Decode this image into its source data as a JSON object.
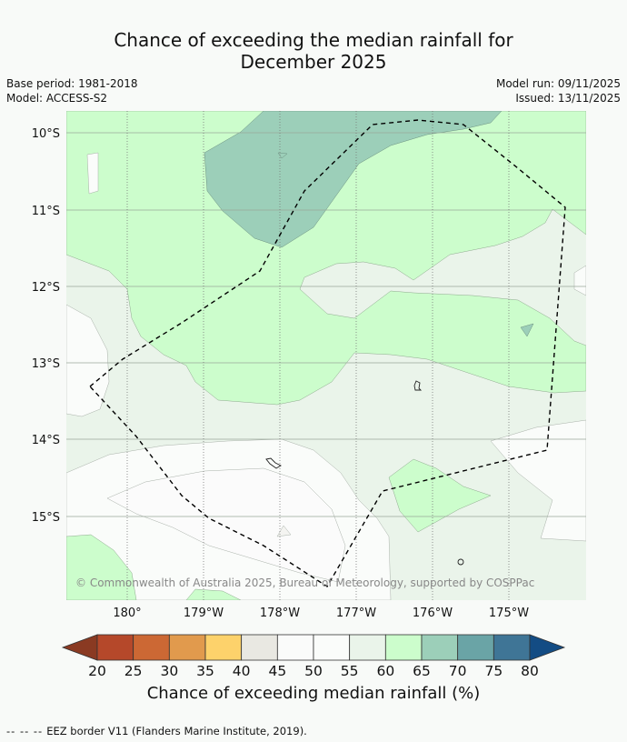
{
  "header": {
    "title_line1": "Chance of exceeding the median rainfall for",
    "title_line2": "December 2025",
    "base_period": "Base period: 1981-2018",
    "model": "Model: ACCESS-S2",
    "model_run": "Model run: 09/11/2025",
    "issued": "Issued: 13/11/2025"
  },
  "map": {
    "lat_labels": [
      "10°S",
      "11°S",
      "12°S",
      "13°S",
      "14°S",
      "15°S"
    ],
    "lon_labels": [
      "180°",
      "179°W",
      "178°W",
      "177°W",
      "176°W",
      "175°W"
    ],
    "copyright": "© Commonwealth of Australia 2025, Bureau of Meteorology, supported by COSPPac"
  },
  "colorbar": {
    "ticks": [
      "20",
      "25",
      "30",
      "35",
      "40",
      "45",
      "50",
      "55",
      "60",
      "65",
      "70",
      "75",
      "80"
    ],
    "colors": [
      "#8a3a22",
      "#b5482a",
      "#cc6834",
      "#e19a4d",
      "#fdd26b",
      "#e9e8e2",
      "#fafbfa",
      "#fafcfa",
      "#eaf4ea",
      "#ccfdcc",
      "#9ccfb9",
      "#6aa4a6",
      "#3f7596",
      "#134c84"
    ],
    "title": "Chance of exceeding median rainfall (%)"
  },
  "legend": {
    "dash": "-- -- --",
    "text": "EEZ border V11 (Flanders Marine Institute, 2019)."
  }
}
